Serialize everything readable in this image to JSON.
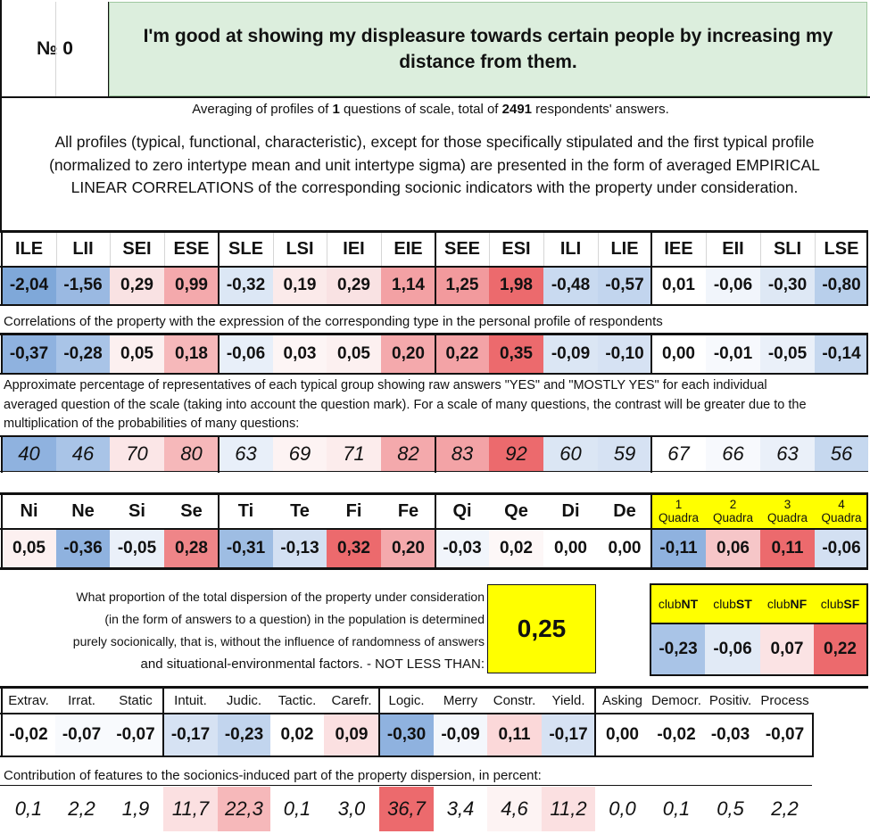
{
  "header": {
    "num_label": "№",
    "num_value": "0",
    "question": "I'm good at showing my displeasure towards certain people by increasing my distance from them."
  },
  "averaging": {
    "prefix": "Averaging of profiles of ",
    "count": "1",
    "middle": " questions of scale, total of ",
    "respondents": "2491",
    "suffix": " respondents' answers."
  },
  "description": "All profiles (typical, functional, characteristic), except for those specifically stipulated and the first typical profile (normalized to zero intertype mean and unit intertype sigma) are presented in the form of averaged EMPIRICAL LINEAR CORRELATIONS of the corresponding socionic indicators with the property under consideration.",
  "types": {
    "labels": [
      "ILE",
      "LII",
      "SEI",
      "ESE",
      "SLE",
      "LSI",
      "IEI",
      "EIE",
      "SEE",
      "ESI",
      "ILI",
      "LIE",
      "IEE",
      "EII",
      "SLI",
      "LSE"
    ],
    "values": [
      "-2,04",
      "-1,56",
      "0,29",
      "0,99",
      "-0,32",
      "0,19",
      "0,29",
      "1,14",
      "1,25",
      "1,98",
      "-0,48",
      "-0,57",
      "0,01",
      "-0,06",
      "-0,30",
      "-0,80"
    ],
    "colors": [
      "#7fa8d9",
      "#9ab9e2",
      "#f9e2e3",
      "#f4a9ac",
      "#dce7f5",
      "#fbeaea",
      "#f9e2e3",
      "#f3a1a4",
      "#f29a9d",
      "#ec6a6d",
      "#c9daf0",
      "#c2d5ee",
      "#ffffff",
      "#f1f5fb",
      "#dee8f5",
      "#b8cfeb"
    ]
  },
  "correlations": {
    "caption": "Correlations of the property with the expression of the corresponding type in the personal profile of respondents",
    "values": [
      "-0,37",
      "-0,28",
      "0,05",
      "0,18",
      "-0,06",
      "0,03",
      "0,05",
      "0,20",
      "0,22",
      "0,35",
      "-0,09",
      "-0,10",
      "0,00",
      "-0,01",
      "-0,05",
      "-0,14"
    ],
    "colors": [
      "#8fb2df",
      "#a9c4e7",
      "#fcf0f0",
      "#f6b8ba",
      "#e8eff9",
      "#fdf5f5",
      "#fcf0f0",
      "#f4a9ac",
      "#f3a3a6",
      "#ec6a6d",
      "#dbe6f4",
      "#d6e2f3",
      "#ffffff",
      "#f7f9fd",
      "#eaf0f9",
      "#c6d8ef"
    ]
  },
  "percent": {
    "caption_lines": [
      "Approximate percentage of representatives of each typical group showing raw answers \"YES\" and \"MOSTLY YES\" for each individual",
      "averaged question of the scale (taking into account the question mark). For a scale of many questions, the contrast will be greater due to the",
      "multiplication of the probabilities of many questions:"
    ],
    "values": [
      "40",
      "46",
      "70",
      "80",
      "63",
      "69",
      "71",
      "82",
      "83",
      "92",
      "60",
      "59",
      "67",
      "66",
      "63",
      "56"
    ],
    "colors": [
      "#8fb2df",
      "#a9c4e7",
      "#fbe6e7",
      "#f6b8ba",
      "#e8eff9",
      "#fdf3f3",
      "#fcecec",
      "#f4a9ac",
      "#f3a3a6",
      "#ec6a6d",
      "#dbe6f4",
      "#d6e2f3",
      "#ffffff",
      "#f7f9fd",
      "#eaf0f9",
      "#c6d8ef"
    ]
  },
  "functions": {
    "labels": [
      "Ni",
      "Ne",
      "Si",
      "Se",
      "Ti",
      "Te",
      "Fi",
      "Fe",
      "Qi",
      "Qe",
      "Di",
      "De"
    ],
    "values": [
      "0,05",
      "-0,36",
      "-0,05",
      "0,28",
      "-0,31",
      "-0,13",
      "0,32",
      "0,20",
      "-0,03",
      "0,02",
      "0,00",
      "0,00"
    ],
    "colors": [
      "#fcf0f0",
      "#8fb2df",
      "#eaf0f9",
      "#ef8588",
      "#9ebde3",
      "#d3e0f2",
      "#ec6a6d",
      "#f4a9ac",
      "#f1f5fb",
      "#fdf7f7",
      "#ffffff",
      "#ffffff"
    ]
  },
  "quadras": {
    "labels": [
      [
        "1",
        "Quadra"
      ],
      [
        "2",
        "Quadra"
      ],
      [
        "3",
        "Quadra"
      ],
      [
        "4",
        "Quadra"
      ]
    ],
    "values": [
      "-0,11",
      "0,06",
      "0,11",
      "-0,06"
    ],
    "colors": [
      "#8fb2df",
      "#f6c6c8",
      "#ec6a6d",
      "#d3e0f2"
    ],
    "header_color": "#ffff00"
  },
  "dispersion": {
    "lines": [
      "What proportion of the total dispersion of the property under consideration",
      "(in the form of answers to a question) in the population is determined",
      "purely socionically, that is, without the influence of randomness of answers",
      "and situational-environmental factors. - NOT LESS THAN:"
    ],
    "value": "0,25"
  },
  "clubs": {
    "labels": [
      [
        "club",
        "NT"
      ],
      [
        "club",
        "ST"
      ],
      [
        "club",
        "NF"
      ],
      [
        "club",
        "SF"
      ]
    ],
    "values": [
      "-0,23",
      "-0,06",
      "0,07",
      "0,22"
    ],
    "colors": [
      "#a9c4e7",
      "#e1eaf6",
      "#fbe3e4",
      "#ec6a6d"
    ],
    "header_color": "#ffff00"
  },
  "traits": {
    "labels": [
      "Extrav.",
      "Irrat.",
      "Static",
      "Intuit.",
      "Judic.",
      "Tactic.",
      "Carefr.",
      "Logic.",
      "Merry",
      "Constr.",
      "Yield.",
      "Asking",
      "Democr.",
      "Positiv.",
      "Process"
    ],
    "values": [
      "-0,02",
      "-0,07",
      "-0,07",
      "-0,17",
      "-0,23",
      "0,02",
      "0,09",
      "-0,30",
      "-0,09",
      "0,11",
      "-0,17",
      "0,00",
      "-0,02",
      "-0,03",
      "-0,07"
    ],
    "colors": [
      "#ffffff",
      "#f8fafd",
      "#f8fafd",
      "#d6e2f3",
      "#c2d5ee",
      "#ffffff",
      "#fbe0e1",
      "#8fb2df",
      "#f4f7fc",
      "#fbd8d9",
      "#d6e2f3",
      "#ffffff",
      "#ffffff",
      "#ffffff",
      "#ffffff"
    ]
  },
  "contribution": {
    "caption": "Contribution of features to the sociоnics-induced part of the property dispersion, in percent:",
    "values": [
      "0,1",
      "2,2",
      "1,9",
      "11,7",
      "22,3",
      "0,1",
      "3,0",
      "36,7",
      "3,4",
      "4,6",
      "11,2",
      "0,0",
      "0,1",
      "0,5",
      "2,2"
    ],
    "colors": [
      "#ffffff",
      "#ffffff",
      "#ffffff",
      "#fbe0e1",
      "#f6b8ba",
      "#ffffff",
      "#ffffff",
      "#ec6a6d",
      "#ffffff",
      "#fdf3f3",
      "#fbe0e1",
      "#ffffff",
      "#ffffff",
      "#ffffff",
      "#ffffff"
    ]
  }
}
